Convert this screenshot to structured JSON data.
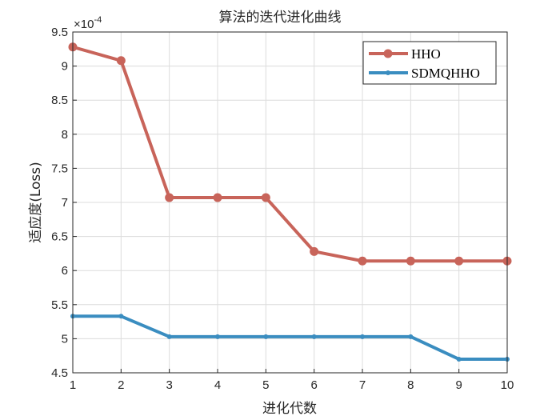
{
  "chart_data": {
    "type": "line",
    "title": "算法的迭代进化曲线",
    "xlabel": "进化代数",
    "ylabel": "适应度(Loss)",
    "y_exponent_label": "×10^-4",
    "y_exponent_base": "×10",
    "y_exponent_power": "-4",
    "x": [
      1,
      2,
      3,
      4,
      5,
      6,
      7,
      8,
      9,
      10
    ],
    "xlim": [
      1,
      10
    ],
    "ylim": [
      4.5,
      9.5
    ],
    "xticks": [
      "1",
      "2",
      "3",
      "4",
      "5",
      "6",
      "7",
      "8",
      "9",
      "10"
    ],
    "yticks": [
      "4.5",
      "5",
      "5.5",
      "6",
      "6.5",
      "7",
      "7.5",
      "8",
      "8.5",
      "9",
      "9.5"
    ],
    "grid": true,
    "legend_position": "top-right",
    "series": [
      {
        "name": "HHO",
        "color": "#C8645A",
        "marker": "circle",
        "values": [
          9.28,
          9.08,
          7.07,
          7.07,
          7.07,
          6.28,
          6.14,
          6.14,
          6.14,
          6.14
        ]
      },
      {
        "name": "SDMQHHO",
        "color": "#3A8DC0",
        "marker": "asterisk",
        "values": [
          5.33,
          5.33,
          5.03,
          5.03,
          5.03,
          5.03,
          5.03,
          5.03,
          4.7,
          4.7
        ]
      }
    ]
  }
}
